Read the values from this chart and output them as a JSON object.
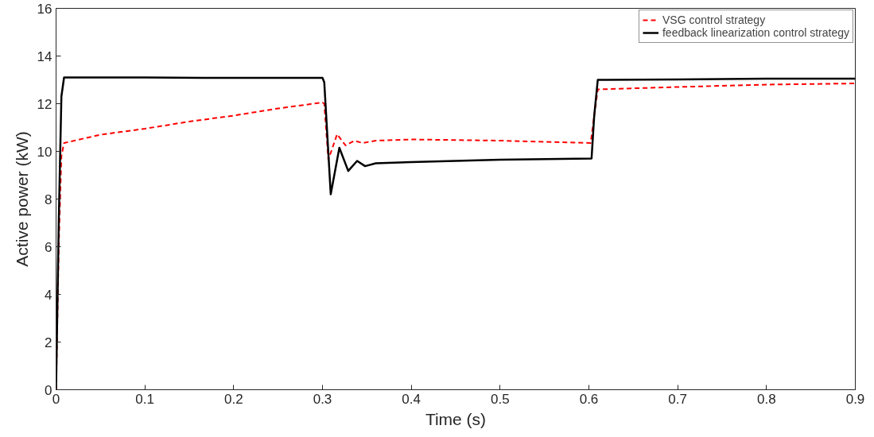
{
  "chart_data": {
    "type": "line",
    "xlabel": "Time (s)",
    "ylabel": "Active power (kW)",
    "xlim": [
      0,
      0.9
    ],
    "ylim": [
      0,
      16
    ],
    "xticks": [
      0,
      0.1,
      0.2,
      0.3,
      0.4,
      0.5,
      0.6,
      0.7,
      0.8,
      0.9
    ],
    "yticks": [
      0,
      2,
      4,
      6,
      8,
      10,
      12,
      14,
      16
    ],
    "grid": false,
    "legend": "top right",
    "marker": "none",
    "series": [
      {
        "name": "VSG control strategy",
        "color": "#ff0000",
        "line_style": "dashed",
        "x": [
          0,
          0.003,
          0.006,
          0.009,
          0.05,
          0.1,
          0.15,
          0.2,
          0.25,
          0.3,
          0.302,
          0.3066,
          0.3165,
          0.326,
          0.336,
          0.345,
          0.36,
          0.4,
          0.5,
          0.602,
          0.606,
          0.61,
          0.7,
          0.8,
          0.9
        ],
        "values": [
          0,
          6,
          9.8,
          10.35,
          10.7,
          10.95,
          11.25,
          11.5,
          11.8,
          12.05,
          12.0,
          9.65,
          10.72,
          10.25,
          10.45,
          10.35,
          10.45,
          10.5,
          10.45,
          10.35,
          11.5,
          12.6,
          12.7,
          12.8,
          12.85
        ]
      },
      {
        "name": "feedback linearization control strategy",
        "color": "#000000",
        "line_style": "solid",
        "x": [
          0,
          0.003,
          0.006,
          0.009,
          0.1,
          0.2,
          0.3,
          0.302,
          0.3093,
          0.319,
          0.329,
          0.339,
          0.348,
          0.36,
          0.4,
          0.5,
          0.603,
          0.606,
          0.61,
          0.7,
          0.8,
          0.9
        ],
        "values": [
          0,
          7,
          12.3,
          13.1,
          13.1,
          13.08,
          13.08,
          12.9,
          8.2,
          10.15,
          9.18,
          9.6,
          9.38,
          9.5,
          9.55,
          9.65,
          9.7,
          11.5,
          13.0,
          13.02,
          13.05,
          13.05
        ]
      }
    ]
  }
}
